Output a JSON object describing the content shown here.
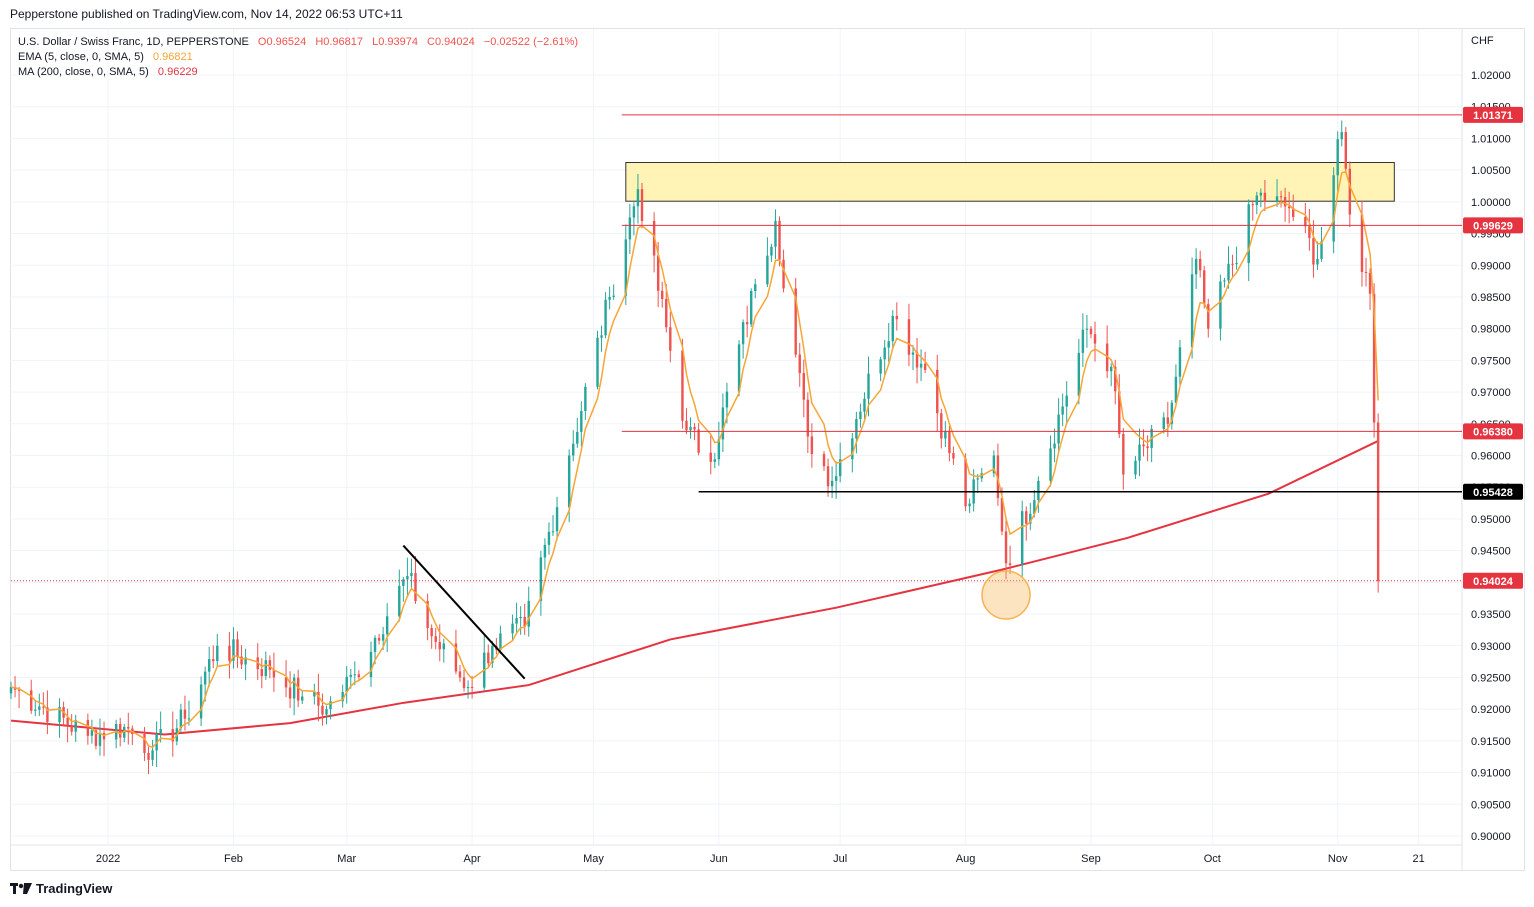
{
  "publisher": "Pepperstone published on TradingView.com, Nov 14, 2022 06:53 UTC+11",
  "legend": {
    "symbol": "U.S. Dollar / Swiss Franc, 1D, PEPPERSTONE",
    "open": "O0.96524",
    "high": "H0.96817",
    "low": "L0.93974",
    "close": "C0.94024",
    "change": "−0.02522 (−2.61%)",
    "ema_label": "EMA (5, close, 0, SMA, 5)",
    "ema_value": "0.96821",
    "ma_label": "MA (200, close, 0, SMA, 5)",
    "ma_value": "0.96229"
  },
  "footer": {
    "brand": "TradingView",
    "logo_icon": "tradingview-logo-icon"
  },
  "colors": {
    "up": "#26a69a",
    "down": "#ef5350",
    "ema": "#f7a534",
    "ma": "#e53340",
    "zone": "#fff2a8",
    "zone_border": "#333333",
    "circle": "#f9b24e"
  },
  "chart_data": {
    "type": "candlestick",
    "currency": "CHF",
    "y_ticks": [
      "0.90000",
      "0.90500",
      "0.91000",
      "0.91500",
      "0.92000",
      "0.92500",
      "0.93000",
      "0.93500",
      "0.94000",
      "0.94500",
      "0.95000",
      "0.95500",
      "0.96000",
      "0.96500",
      "0.97000",
      "0.97500",
      "0.98000",
      "0.98500",
      "0.99000",
      "0.99500",
      "1.00000",
      "1.00500",
      "1.01000",
      "1.01500",
      "1.02000"
    ],
    "ylim": [
      0.8985,
      1.0228
    ],
    "x_ticks": [
      {
        "label": "2022",
        "date": "2022-01-01"
      },
      {
        "label": "Feb",
        "date": "2022-02-01"
      },
      {
        "label": "Mar",
        "date": "2022-03-01"
      },
      {
        "label": "Apr",
        "date": "2022-04-01"
      },
      {
        "label": "May",
        "date": "2022-05-01"
      },
      {
        "label": "Jun",
        "date": "2022-06-01"
      },
      {
        "label": "Jul",
        "date": "2022-07-01"
      },
      {
        "label": "Aug",
        "date": "2022-08-01"
      },
      {
        "label": "Sep",
        "date": "2022-09-01"
      },
      {
        "label": "Oct",
        "date": "2022-10-01"
      },
      {
        "label": "Nov",
        "date": "2022-11-01"
      },
      {
        "label": "21",
        "date": "2022-11-21"
      }
    ],
    "xlim": [
      "2021-12-08",
      "2022-11-30"
    ],
    "anchors": [
      {
        "date": "2021-12-08",
        "close": 0.9235
      },
      {
        "date": "2021-12-27",
        "close": 0.9158
      },
      {
        "date": "2022-01-05",
        "close": 0.9172
      },
      {
        "date": "2022-01-12",
        "close": 0.9135
      },
      {
        "date": "2022-01-20",
        "close": 0.9185
      },
      {
        "date": "2022-01-28",
        "close": 0.93
      },
      {
        "date": "2022-02-10",
        "close": 0.9262
      },
      {
        "date": "2022-02-18",
        "close": 0.922
      },
      {
        "date": "2022-02-24",
        "close": 0.92
      },
      {
        "date": "2022-03-03",
        "close": 0.9255
      },
      {
        "date": "2022-03-16",
        "close": 0.941
      },
      {
        "date": "2022-03-22",
        "close": 0.9315
      },
      {
        "date": "2022-03-31",
        "close": 0.9235
      },
      {
        "date": "2022-04-06",
        "close": 0.93
      },
      {
        "date": "2022-04-14",
        "close": 0.933
      },
      {
        "date": "2022-04-25",
        "close": 0.96
      },
      {
        "date": "2022-05-05",
        "close": 0.985
      },
      {
        "date": "2022-05-12",
        "close": 1.002
      },
      {
        "date": "2022-05-24",
        "close": 0.964
      },
      {
        "date": "2022-05-30",
        "close": 0.959
      },
      {
        "date": "2022-06-10",
        "close": 0.987
      },
      {
        "date": "2022-06-15",
        "close": 0.997
      },
      {
        "date": "2022-06-23",
        "close": 0.963
      },
      {
        "date": "2022-06-29",
        "close": 0.956
      },
      {
        "date": "2022-07-14",
        "close": 0.982
      },
      {
        "date": "2022-07-22",
        "close": 0.9735
      },
      {
        "date": "2022-08-01",
        "close": 0.952
      },
      {
        "date": "2022-08-08",
        "close": 0.96
      },
      {
        "date": "2022-08-11",
        "close": 0.943
      },
      {
        "date": "2022-08-19",
        "close": 0.956
      },
      {
        "date": "2022-08-31",
        "close": 0.98
      },
      {
        "date": "2022-09-06",
        "close": 0.974
      },
      {
        "date": "2022-09-09",
        "close": 0.957
      },
      {
        "date": "2022-09-20",
        "close": 0.965
      },
      {
        "date": "2022-09-27",
        "close": 0.991
      },
      {
        "date": "2022-09-30",
        "close": 0.98
      },
      {
        "date": "2022-10-12",
        "close": 1.001
      },
      {
        "date": "2022-10-20",
        "close": 0.999
      },
      {
        "date": "2022-10-27",
        "close": 0.991
      },
      {
        "date": "2022-11-02",
        "close": 1.011
      },
      {
        "date": "2022-11-04",
        "close": 0.998
      },
      {
        "date": "2022-11-09",
        "close": 0.9855
      },
      {
        "date": "2022-11-10",
        "close": 0.9652
      },
      {
        "date": "2022-11-11",
        "close": 0.9402
      }
    ],
    "ma200": [
      {
        "date": "2021-12-08",
        "value": 0.9182
      },
      {
        "date": "2022-01-15",
        "value": 0.916
      },
      {
        "date": "2022-02-15",
        "value": 0.9178
      },
      {
        "date": "2022-03-15",
        "value": 0.921
      },
      {
        "date": "2022-04-15",
        "value": 0.9238
      },
      {
        "date": "2022-05-20",
        "value": 0.931
      },
      {
        "date": "2022-06-30",
        "value": 0.936
      },
      {
        "date": "2022-08-10",
        "value": 0.942
      },
      {
        "date": "2022-09-10",
        "value": 0.947
      },
      {
        "date": "2022-10-15",
        "value": 0.954
      },
      {
        "date": "2022-11-11",
        "value": 0.9623
      }
    ],
    "h_lines": [
      {
        "value": 1.01371,
        "label": "1.01371",
        "color": "#e53340",
        "from": "2022-05-08"
      },
      {
        "value": 0.99629,
        "label": "0.99629",
        "color": "#e53340",
        "from": "2022-05-08"
      },
      {
        "value": 0.9638,
        "label": "0.96380",
        "color": "#e53340",
        "from": "2022-05-08"
      },
      {
        "value": 0.95428,
        "label": "0.95428",
        "color": "#000000",
        "from": "2022-05-27"
      },
      {
        "value": 0.94024,
        "label": "0.94024",
        "color": "#e53340",
        "from": "2021-12-08",
        "dotted": true
      }
    ],
    "zone": {
      "from": "2022-05-09",
      "to": "2022-11-15",
      "low": 1.0001,
      "high": 1.0062
    },
    "trendline": [
      {
        "date": "2022-03-15",
        "value": 0.9458
      },
      {
        "date": "2022-04-14",
        "value": 0.9248
      }
    ],
    "circle": {
      "date": "2022-08-11",
      "value": 0.938
    }
  }
}
